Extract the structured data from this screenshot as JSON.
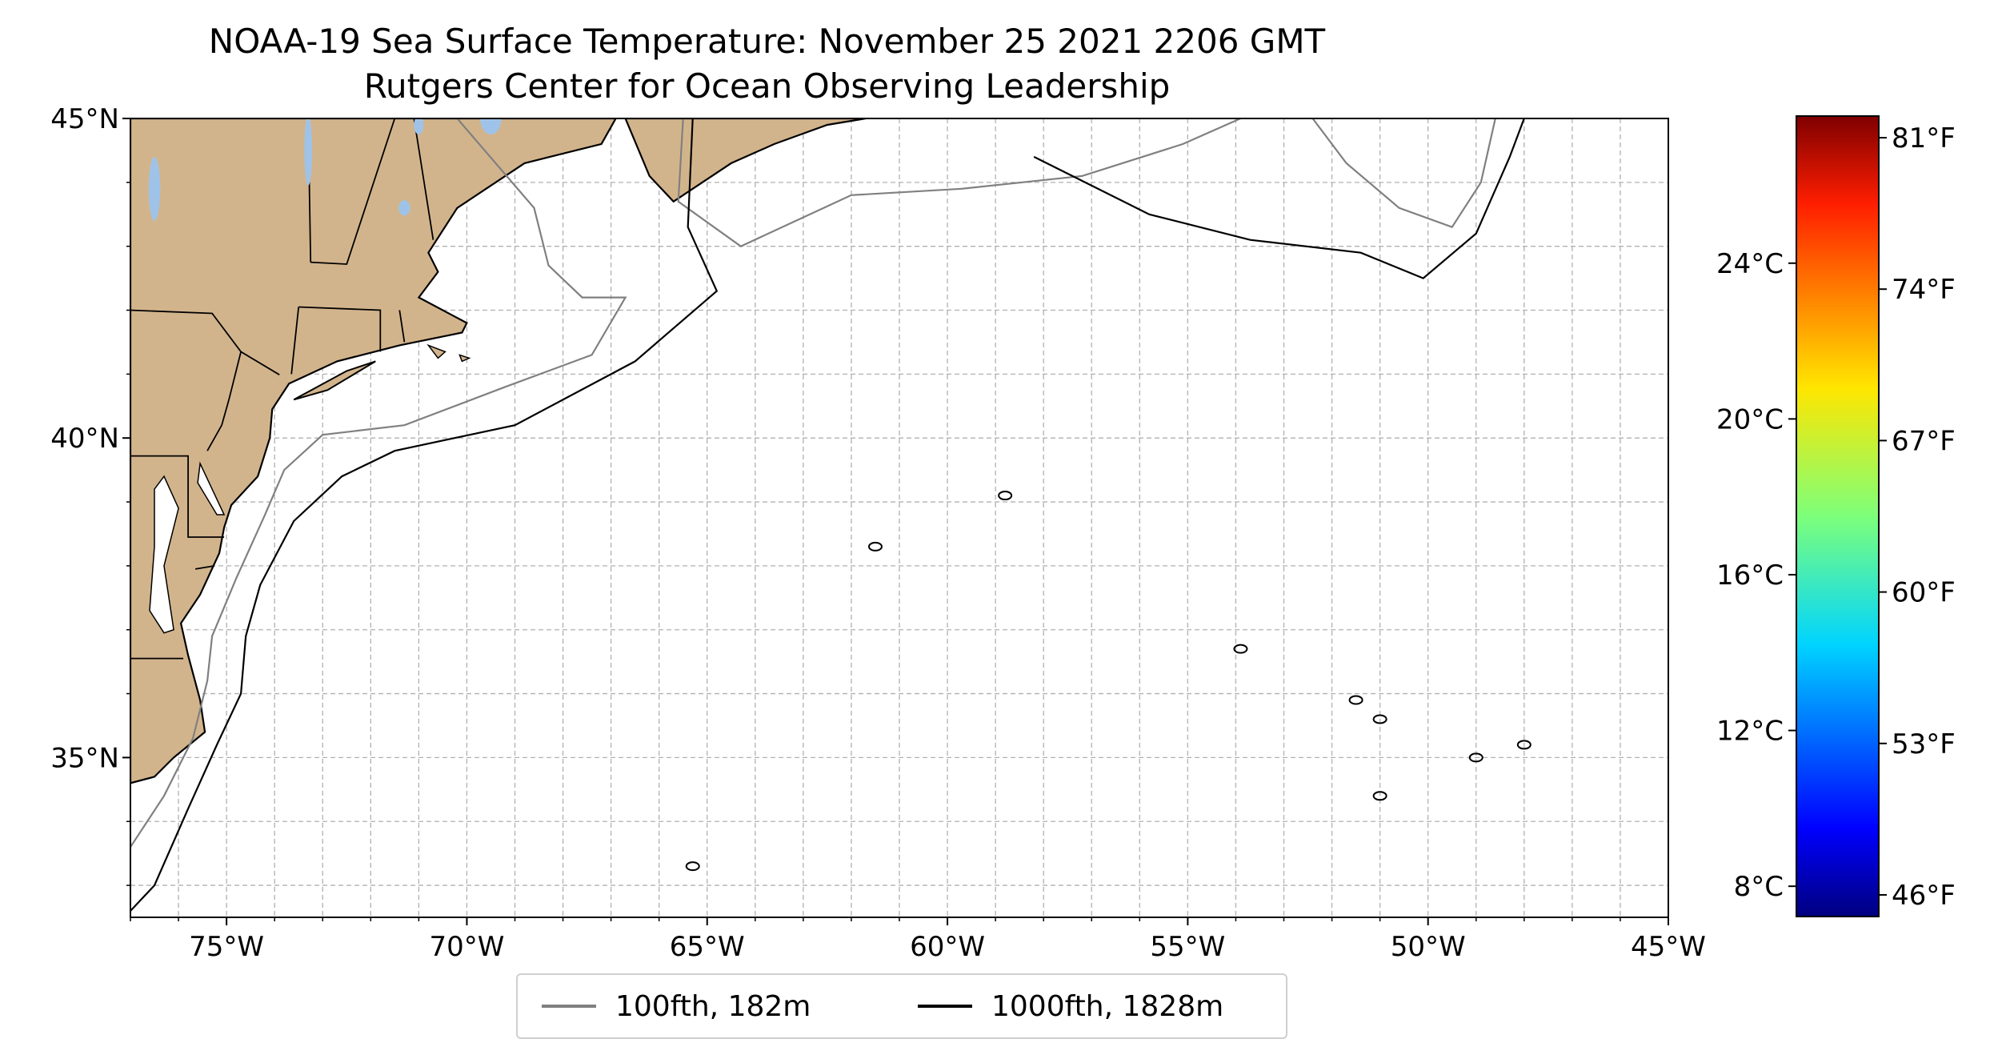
{
  "title": "NOAA-19 Sea Surface Temperature: November 25 2021 2206 GMT",
  "subtitle": "Rutgers Center for Ocean Observing Leadership",
  "map": {
    "lon_range": [
      -77,
      -45
    ],
    "lat_range": [
      32.5,
      45
    ],
    "x_ticks": [
      {
        "lon": -75,
        "label": "75°W"
      },
      {
        "lon": -70,
        "label": "70°W"
      },
      {
        "lon": -65,
        "label": "65°W"
      },
      {
        "lon": -60,
        "label": "60°W"
      },
      {
        "lon": -55,
        "label": "55°W"
      },
      {
        "lon": -50,
        "label": "50°W"
      },
      {
        "lon": -45,
        "label": "45°W"
      }
    ],
    "y_ticks": [
      {
        "lat": 45,
        "label": "45°N"
      },
      {
        "lat": 40,
        "label": "40°N"
      },
      {
        "lat": 35,
        "label": "35°N"
      }
    ],
    "gridlines": "dashed every 1°",
    "colors": {
      "land": "#d2b48c",
      "lakes": "#9fc3e8",
      "coast": "#000000",
      "isobath_100": "#808080",
      "isobath_1000": "#000000"
    }
  },
  "colorbar": {
    "cmap": "jet",
    "celsius_ticks": [
      {
        "value": 8,
        "label": "8°C"
      },
      {
        "value": 12,
        "label": "12°C"
      },
      {
        "value": 16,
        "label": "16°C"
      },
      {
        "value": 20,
        "label": "20°C"
      },
      {
        "value": 24,
        "label": "24°C"
      }
    ],
    "fahrenheit_ticks": [
      {
        "value": 46,
        "label": "46°F"
      },
      {
        "value": 53,
        "label": "53°F"
      },
      {
        "value": 60,
        "label": "60°F"
      },
      {
        "value": 67,
        "label": "67°F"
      },
      {
        "value": 74,
        "label": "74°F"
      },
      {
        "value": 81,
        "label": "81°F"
      }
    ],
    "range_f": [
      45,
      82
    ]
  },
  "legend": {
    "items": [
      {
        "label": "100fth, 182m",
        "color": "#808080"
      },
      {
        "label": "1000fth, 1828m",
        "color": "#000000"
      }
    ]
  }
}
